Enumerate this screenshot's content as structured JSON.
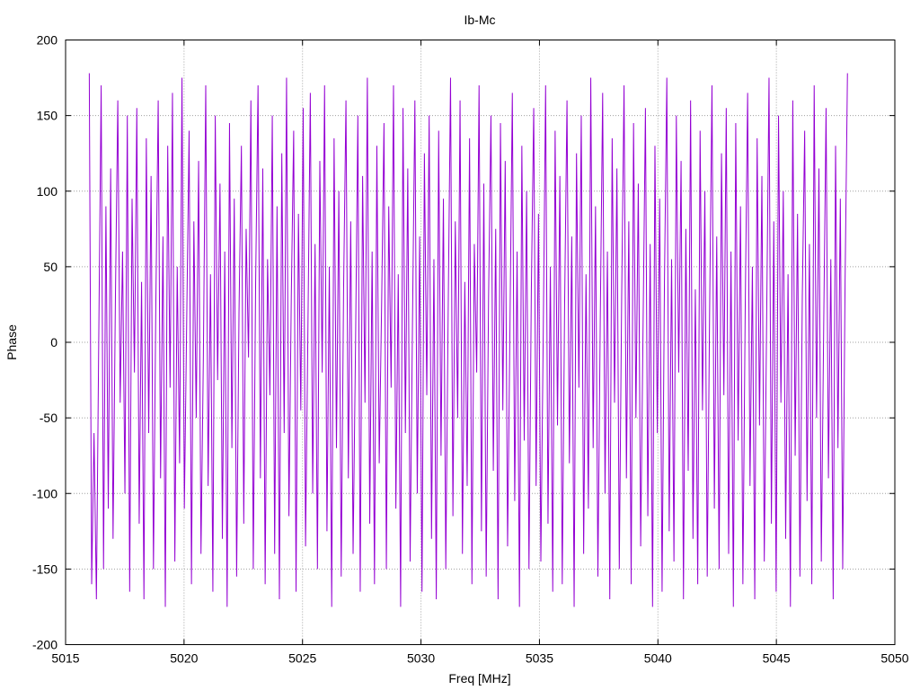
{
  "chart_data": {
    "type": "line",
    "title": "Ib-Mc",
    "xlabel": "Freq [MHz]",
    "ylabel": "Phase",
    "xlim": [
      5015,
      5050
    ],
    "ylim": [
      -200,
      200
    ],
    "xticks": [
      5015,
      5020,
      5025,
      5030,
      5035,
      5040,
      5045,
      5050
    ],
    "yticks": [
      -200,
      -150,
      -100,
      -50,
      0,
      50,
      100,
      150,
      200
    ],
    "grid": true,
    "color": "#9400d3",
    "series": [
      {
        "x_start": 5016.0,
        "x_end": 5048.0,
        "values": [
          178,
          -160,
          -60,
          -170,
          5,
          170,
          -150,
          90,
          -110,
          115,
          -130,
          30,
          160,
          -40,
          60,
          -100,
          150,
          -165,
          95,
          -20,
          155,
          -120,
          40,
          -170,
          135,
          -60,
          110,
          -150,
          25,
          160,
          -90,
          70,
          -175,
          130,
          -30,
          165,
          -145,
          50,
          -80,
          175,
          -110,
          15,
          140,
          -160,
          80,
          -50,
          120,
          -140,
          -10,
          170,
          -95,
          45,
          -165,
          150,
          -25,
          105,
          -130,
          60,
          -175,
          145,
          -70,
          95,
          -155,
          20,
          130,
          -120,
          75,
          -10,
          160,
          -150,
          40,
          170,
          -90,
          115,
          -160,
          55,
          -35,
          150,
          -140,
          90,
          -170,
          125,
          -60,
          175,
          -115,
          30,
          140,
          -165,
          85,
          -45,
          155,
          -135,
          10,
          165,
          -100,
          65,
          -150,
          120,
          -20,
          170,
          -125,
          50,
          -175,
          135,
          -70,
          100,
          -155,
          35,
          160,
          -90,
          80,
          -140,
          -5,
          150,
          -165,
          110,
          -40,
          175,
          -120,
          60,
          -160,
          130,
          -80,
          25,
          145,
          -150,
          90,
          -30,
          170,
          -110,
          45,
          -175,
          155,
          -60,
          115,
          -145,
          15,
          160,
          -100,
          70,
          -165,
          125,
          -35,
          150,
          -130,
          55,
          -170,
          140,
          -75,
          95,
          -150,
          20,
          175,
          -115,
          80,
          -50,
          160,
          -140,
          40,
          -95,
          135,
          -160,
          65,
          -20,
          170,
          -125,
          105,
          -155,
          30,
          150,
          -85,
          75,
          -170,
          145,
          -45,
          120,
          -135,
          10,
          165,
          -105,
          60,
          -175,
          130,
          -65,
          100,
          -150,
          35,
          155,
          -95,
          85,
          -145,
          5,
          170,
          -120,
          50,
          -165,
          140,
          -55,
          110,
          -160,
          25,
          160,
          -80,
          70,
          -175,
          125,
          -30,
          150,
          -140,
          45,
          -110,
          175,
          -70,
          90,
          -155,
          15,
          165,
          -100,
          60,
          -170,
          135,
          -40,
          115,
          -150,
          30,
          170,
          -90,
          80,
          -160,
          145,
          -50,
          105,
          -135,
          10,
          155,
          -115,
          65,
          -175,
          130,
          -60,
          95,
          -165,
          40,
          175,
          -125,
          55,
          -145,
          150,
          -20,
          120,
          -170,
          75,
          -85,
          160,
          -130,
          35,
          -160,
          140,
          -45,
          100,
          -155,
          20,
          170,
          -110,
          70,
          -150,
          125,
          -35,
          155,
          -140,
          60,
          -175,
          145,
          -65,
          90,
          -160,
          25,
          165,
          -95,
          50,
          -170,
          135,
          -55,
          110,
          -145,
          15,
          175,
          -120,
          80,
          -165,
          150,
          -40,
          100,
          -130,
          45,
          -175,
          160,
          -75,
          85,
          -155,
          30,
          140,
          -105,
          65,
          -160,
          170,
          -50,
          115,
          -145,
          10,
          155,
          -90,
          55,
          -170,
          130,
          -70,
          95,
          -150,
          40,
          178
        ]
      }
    ]
  }
}
